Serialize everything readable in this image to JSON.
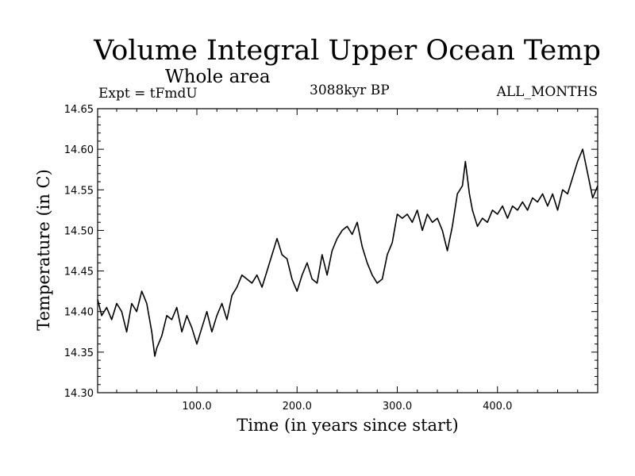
{
  "chart_data": {
    "type": "line",
    "title": "Volume Integral Upper Ocean Temp",
    "subtitle": "Whole area",
    "top_left_label": "Expt = tFmdU",
    "top_center_label": "3088kyr BP",
    "top_right_label": "ALL_MONTHS",
    "xlabel": "Time (in years since start)",
    "ylabel": "Temperature (in C)",
    "xlim": [
      1,
      500
    ],
    "ylim": [
      14.3,
      14.65
    ],
    "xticks": [
      100,
      200,
      300,
      400
    ],
    "xtick_labels": [
      "100.0",
      "200.0",
      "300.0",
      "400.0"
    ],
    "yticks": [
      14.3,
      14.35,
      14.4,
      14.45,
      14.5,
      14.55,
      14.6,
      14.65
    ],
    "ytick_labels": [
      "14.30",
      "14.35",
      "14.40",
      "14.45",
      "14.50",
      "14.55",
      "14.60",
      "14.65"
    ],
    "grid": false,
    "series": [
      {
        "name": "Temperature",
        "color": "#000000",
        "x": [
          1,
          5,
          10,
          15,
          20,
          25,
          30,
          35,
          40,
          45,
          50,
          55,
          58,
          60,
          65,
          70,
          75,
          80,
          85,
          90,
          95,
          100,
          105,
          110,
          115,
          120,
          125,
          130,
          135,
          140,
          145,
          150,
          155,
          160,
          165,
          170,
          175,
          180,
          185,
          190,
          195,
          200,
          205,
          210,
          215,
          220,
          225,
          230,
          235,
          240,
          245,
          250,
          255,
          260,
          265,
          270,
          275,
          280,
          285,
          290,
          295,
          300,
          305,
          310,
          315,
          320,
          325,
          330,
          335,
          340,
          345,
          350,
          355,
          360,
          365,
          368,
          372,
          375,
          380,
          385,
          390,
          395,
          400,
          405,
          410,
          415,
          420,
          425,
          430,
          435,
          440,
          445,
          450,
          455,
          460,
          465,
          470,
          475,
          480,
          485,
          490,
          495,
          500
        ],
        "values": [
          14.415,
          14.395,
          14.405,
          14.39,
          14.41,
          14.4,
          14.375,
          14.41,
          14.4,
          14.425,
          14.41,
          14.375,
          14.345,
          14.355,
          14.37,
          14.395,
          14.39,
          14.405,
          14.375,
          14.395,
          14.38,
          14.36,
          14.38,
          14.4,
          14.375,
          14.395,
          14.41,
          14.39,
          14.42,
          14.43,
          14.445,
          14.44,
          14.435,
          14.445,
          14.43,
          14.45,
          14.47,
          14.49,
          14.47,
          14.465,
          14.44,
          14.425,
          14.445,
          14.46,
          14.44,
          14.435,
          14.47,
          14.445,
          14.475,
          14.49,
          14.5,
          14.505,
          14.495,
          14.51,
          14.48,
          14.46,
          14.445,
          14.435,
          14.44,
          14.47,
          14.485,
          14.52,
          14.515,
          14.52,
          14.51,
          14.525,
          14.5,
          14.52,
          14.51,
          14.515,
          14.5,
          14.475,
          14.505,
          14.545,
          14.555,
          14.585,
          14.545,
          14.525,
          14.505,
          14.515,
          14.51,
          14.525,
          14.52,
          14.53,
          14.515,
          14.53,
          14.525,
          14.535,
          14.525,
          14.54,
          14.535,
          14.545,
          14.53,
          14.545,
          14.525,
          14.55,
          14.545,
          14.565,
          14.585,
          14.6,
          14.57,
          14.54,
          14.555
        ]
      }
    ]
  }
}
